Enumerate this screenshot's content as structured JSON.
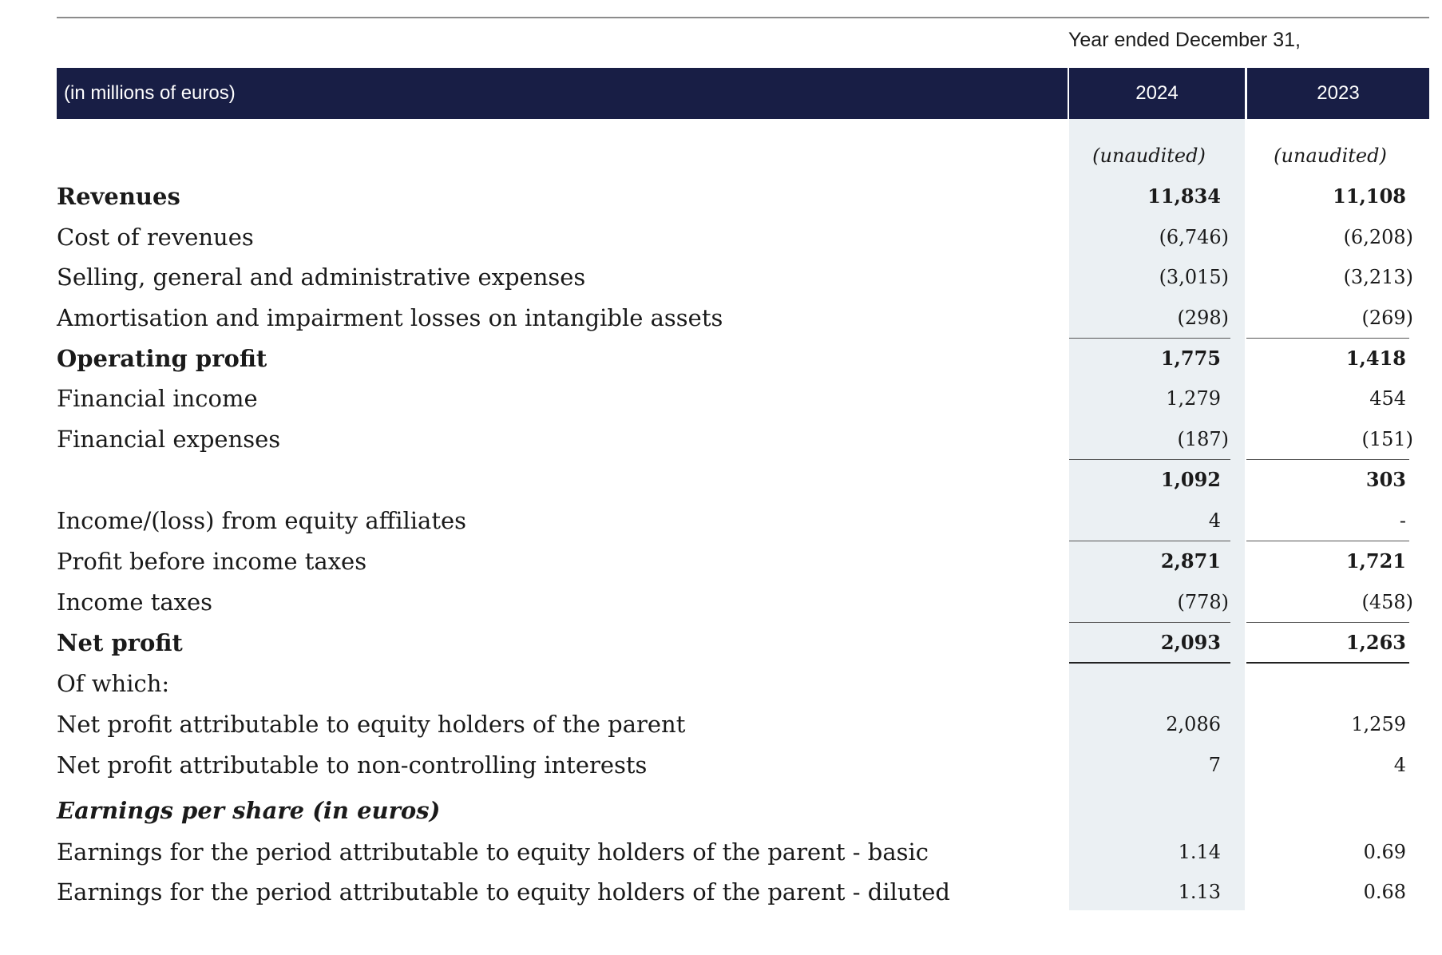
{
  "period_heading": "Year ended December 31,",
  "header": {
    "label": "(in millions of euros)",
    "years": [
      "2024",
      "2023"
    ]
  },
  "subheader": [
    "(unaudited)",
    "(unaudited)"
  ],
  "rows": [
    {
      "label": "Revenues",
      "v2024": "11,834",
      "v2023": "11,108",
      "bold": true
    },
    {
      "label": "Cost of revenues",
      "v2024": "(6,746)",
      "v2023": "(6,208)"
    },
    {
      "label": "Selling, general and administrative expenses",
      "v2024": "(3,015)",
      "v2023": "(3,213)"
    },
    {
      "label": "Amortisation and impairment losses on intangible assets",
      "v2024": "(298)",
      "v2023": "(269)"
    },
    {
      "label": "Operating profit",
      "v2024": "1,775",
      "v2023": "1,418",
      "bold": true
    },
    {
      "label": "Financial income",
      "v2024": "1,279",
      "v2023": "454"
    },
    {
      "label": "Financial expenses",
      "v2024": "(187)",
      "v2023": "(151)"
    },
    {
      "label": "",
      "v2024": "1,092",
      "v2023": "303",
      "bold": true
    },
    {
      "label": "Income/(loss) from equity affiliates",
      "v2024": "4",
      "v2023": "-"
    },
    {
      "label": "Profit before income taxes",
      "v2024": "2,871",
      "v2023": "1,721"
    },
    {
      "label": "Income taxes",
      "v2024": "(778)",
      "v2023": "(458)"
    },
    {
      "label": "Net profit",
      "v2024": "2,093",
      "v2023": "1,263",
      "bold": true
    },
    {
      "label": "Of which:",
      "v2024": "",
      "v2023": ""
    },
    {
      "label": "Net profit attributable to equity holders of the parent",
      "v2024": "2,086",
      "v2023": "1,259"
    },
    {
      "label": "Net profit attributable to non-controlling interests",
      "v2024": "7",
      "v2023": "4"
    },
    {
      "label": "Earnings per share (in euros)",
      "v2024": "",
      "v2023": "",
      "italic": true
    },
    {
      "label": "Earnings for the period attributable to equity holders of the parent - basic",
      "v2024": "1.14",
      "v2023": "0.69"
    },
    {
      "label": "Earnings for the period attributable to equity holders of the parent - diluted",
      "v2024": "1.13",
      "v2023": "0.68"
    }
  ]
}
